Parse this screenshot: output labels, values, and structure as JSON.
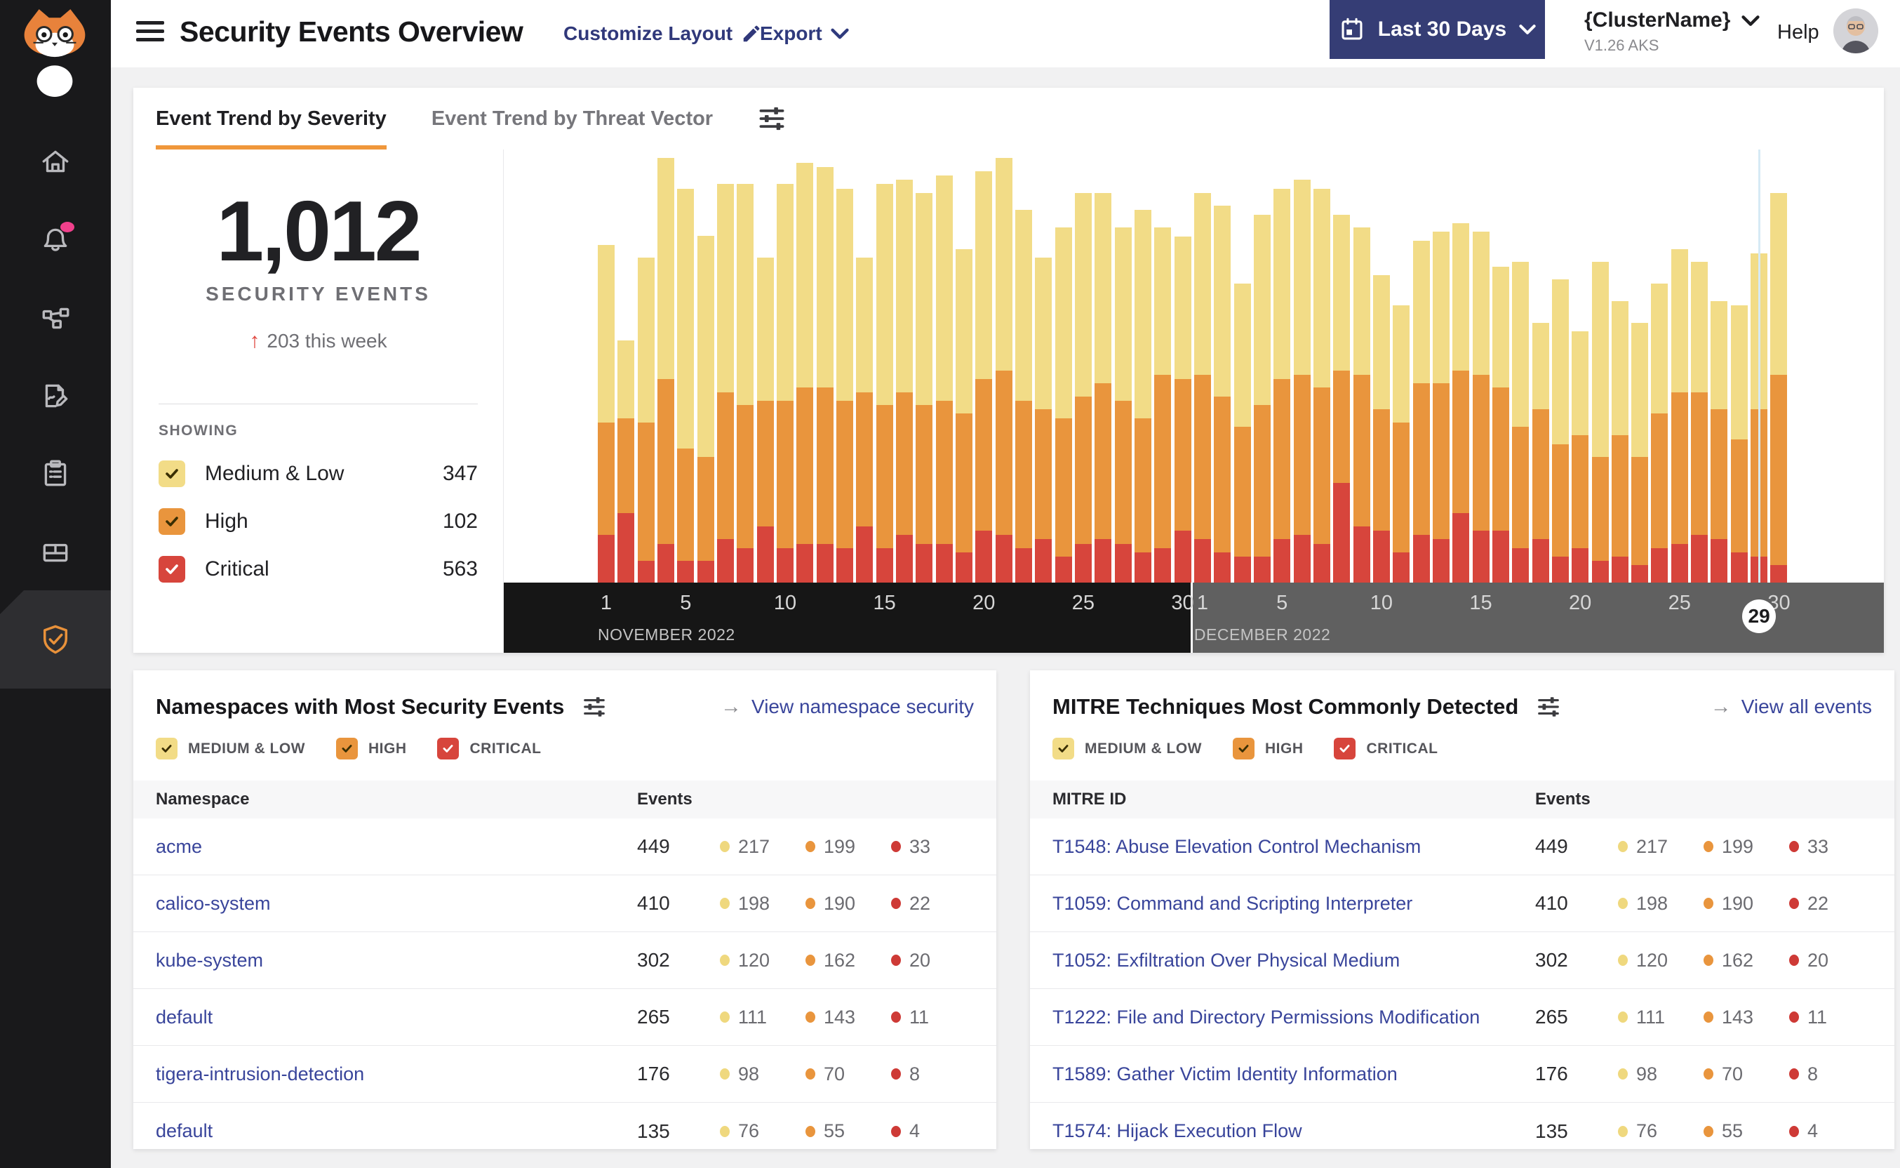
{
  "header": {
    "title": "Security Events Overview",
    "customize_layout_label": "Customize Layout",
    "export_label": "Export",
    "date_range_button": {
      "label": "Last 30 Days",
      "icon": "calendar-icon"
    },
    "cluster": {
      "name": "{ClusterName}",
      "version": "V1.26 AKS"
    },
    "help_label": "Help",
    "icons": [
      "hamburger-menu-icon",
      "pencil-icon",
      "chevron-down-icon",
      "avatar"
    ]
  },
  "sidebar": {
    "items": [
      {
        "icon": "cat-logo"
      },
      {
        "icon": "home-icon"
      },
      {
        "icon": "bell-icon",
        "notification_badge": true
      },
      {
        "icon": "service-graph-icon"
      },
      {
        "icon": "policy-edit-icon"
      },
      {
        "icon": "clipboard-report-icon"
      },
      {
        "icon": "storage-box-icon"
      },
      {
        "icon": "shield-check-icon",
        "active": true,
        "active_color": "#E8913A"
      }
    ]
  },
  "tabs": [
    {
      "label": "Event Trend by Severity",
      "active": true
    },
    {
      "label": "Event Trend by Threat Vector",
      "active": false
    }
  ],
  "summary": {
    "total": "1,012",
    "caption": "SECURITY EVENTS",
    "delta_arrow": "↑",
    "delta": "203 this week",
    "showing_label": "SHOWING",
    "legend": [
      {
        "label": "Medium & Low",
        "count": "347",
        "color": "#F2DC87"
      },
      {
        "label": "High",
        "count": "102",
        "color": "#E9953D"
      },
      {
        "label": "Critical",
        "count": "563",
        "color": "#D7453C"
      }
    ]
  },
  "severity_filters": [
    {
      "label": "MEDIUM & LOW",
      "color": "#F2DC87",
      "checked": true
    },
    {
      "label": "HIGH",
      "color": "#E9953D",
      "checked": true
    },
    {
      "label": "CRITICAL",
      "color": "#D7453C",
      "checked": true
    }
  ],
  "chart_data": {
    "type": "bar",
    "stacked": true,
    "grid": false,
    "value_unit": "relative bar height, % of plot area (no y-axis labels shown in UI)",
    "x": [
      "Nov 1",
      "Nov 2",
      "Nov 3",
      "Nov 4",
      "Nov 5",
      "Nov 6",
      "Nov 7",
      "Nov 8",
      "Nov 9",
      "Nov 10",
      "Nov 11",
      "Nov 12",
      "Nov 13",
      "Nov 14",
      "Nov 15",
      "Nov 16",
      "Nov 17",
      "Nov 18",
      "Nov 19",
      "Nov 20",
      "Nov 21",
      "Nov 22",
      "Nov 23",
      "Nov 24",
      "Nov 25",
      "Nov 26",
      "Nov 27",
      "Nov 28",
      "Nov 29",
      "Nov 30",
      "Dec 1",
      "Dec 2",
      "Dec 3",
      "Dec 4",
      "Dec 5",
      "Dec 6",
      "Dec 7",
      "Dec 8",
      "Dec 9",
      "Dec 10",
      "Dec 11",
      "Dec 12",
      "Dec 13",
      "Dec 14",
      "Dec 15",
      "Dec 16",
      "Dec 17",
      "Dec 18",
      "Dec 19",
      "Dec 20",
      "Dec 21",
      "Dec 22",
      "Dec 23",
      "Dec 24",
      "Dec 25",
      "Dec 26",
      "Dec 27",
      "Dec 28",
      "Dec 29",
      "Dec 30"
    ],
    "series": [
      {
        "name": "Critical",
        "color": "#D7453C",
        "values": [
          11,
          16,
          5,
          9,
          5,
          5,
          10,
          8,
          13,
          8,
          9,
          9,
          8,
          13,
          8,
          11,
          9,
          9,
          7,
          12,
          11,
          8,
          10,
          6,
          9,
          10,
          9,
          7,
          8,
          12,
          10,
          7,
          6,
          6,
          10,
          11,
          9,
          23,
          13,
          12,
          7,
          11,
          10,
          16,
          12,
          12,
          8,
          10,
          6,
          8,
          5,
          6,
          4,
          8,
          9,
          11,
          10,
          7,
          6,
          4
        ]
      },
      {
        "name": "High",
        "color": "#E9953D",
        "values": [
          26,
          22,
          32,
          38,
          26,
          24,
          34,
          33,
          29,
          34,
          36,
          36,
          34,
          31,
          33,
          33,
          32,
          33,
          32,
          35,
          38,
          34,
          30,
          32,
          34,
          36,
          33,
          31,
          40,
          35,
          38,
          36,
          30,
          35,
          37,
          37,
          36,
          26,
          35,
          28,
          30,
          35,
          36,
          33,
          36,
          33,
          28,
          30,
          26,
          26,
          24,
          28,
          25,
          31,
          35,
          33,
          30,
          26,
          34,
          44
        ]
      },
      {
        "name": "Medium & Low",
        "color": "#F2DC87",
        "values": [
          41,
          18,
          38,
          51,
          60,
          51,
          48,
          51,
          33,
          50,
          52,
          51,
          49,
          31,
          51,
          49,
          49,
          52,
          38,
          48,
          49,
          44,
          35,
          44,
          47,
          44,
          40,
          48,
          34,
          33,
          42,
          44,
          33,
          44,
          44,
          45,
          46,
          36,
          34,
          31,
          27,
          33,
          35,
          34,
          33,
          28,
          38,
          20,
          38,
          24,
          45,
          31,
          31,
          30,
          33,
          30,
          25,
          31,
          36,
          42
        ]
      }
    ],
    "x_axis": {
      "months": [
        {
          "label": "NOVEMBER 2022",
          "start_index": 0,
          "band_color": "#161616"
        },
        {
          "label": "DECEMBER 2022",
          "start_index": 30,
          "band_color": "#606060"
        }
      ],
      "ticks": [
        {
          "index": 0,
          "label": "1"
        },
        {
          "index": 4,
          "label": "5"
        },
        {
          "index": 9,
          "label": "10"
        },
        {
          "index": 14,
          "label": "15"
        },
        {
          "index": 19,
          "label": "20"
        },
        {
          "index": 24,
          "label": "25"
        },
        {
          "index": 29,
          "label": "30"
        },
        {
          "index": 30,
          "label": "1"
        },
        {
          "index": 34,
          "label": "5"
        },
        {
          "index": 39,
          "label": "10"
        },
        {
          "index": 44,
          "label": "15"
        },
        {
          "index": 49,
          "label": "20"
        },
        {
          "index": 54,
          "label": "25"
        },
        {
          "index": 59,
          "label": "30"
        }
      ],
      "highlighted_day": {
        "label": "29",
        "index": 58,
        "badge": true,
        "hover_line_color": "#D6EAF5"
      }
    },
    "legend_position": "left stats panel (SHOWING)"
  },
  "panels": {
    "namespaces": {
      "title": "Namespaces with Most Security Events",
      "link": "View namespace security",
      "columns": [
        "Namespace",
        "Events"
      ],
      "rows": [
        {
          "name": "acme",
          "total": "449",
          "medium_low": "217",
          "high": "199",
          "critical": "33"
        },
        {
          "name": "calico-system",
          "total": "410",
          "medium_low": "198",
          "high": "190",
          "critical": "22"
        },
        {
          "name": "kube-system",
          "total": "302",
          "medium_low": "120",
          "high": "162",
          "critical": "20"
        },
        {
          "name": "default",
          "total": "265",
          "medium_low": "111",
          "high": "143",
          "critical": "11"
        },
        {
          "name": "tigera-intrusion-detection",
          "total": "176",
          "medium_low": "98",
          "high": "70",
          "critical": "8"
        },
        {
          "name": "default",
          "total": "135",
          "medium_low": "76",
          "high": "55",
          "critical": "4"
        }
      ]
    },
    "mitre": {
      "title": "MITRE Techniques Most Commonly Detected",
      "link": "View all events",
      "columns": [
        "MITRE ID",
        "Events"
      ],
      "rows": [
        {
          "name": "T1548: Abuse Elevation Control Mechanism",
          "total": "449",
          "medium_low": "217",
          "high": "199",
          "critical": "33"
        },
        {
          "name": "T1059: Command and Scripting Interpreter",
          "total": "410",
          "medium_low": "198",
          "high": "190",
          "critical": "22"
        },
        {
          "name": "T1052: Exfiltration Over Physical Medium",
          "total": "302",
          "medium_low": "120",
          "high": "162",
          "critical": "20"
        },
        {
          "name": "T1222: File and Directory Permissions Modification",
          "total": "265",
          "medium_low": "111",
          "high": "143",
          "critical": "11"
        },
        {
          "name": "T1589: Gather Victim Identity Information",
          "total": "176",
          "medium_low": "98",
          "high": "70",
          "critical": "8"
        },
        {
          "name": "T1574: Hijack Execution Flow",
          "total": "135",
          "medium_low": "76",
          "high": "55",
          "critical": "4"
        }
      ]
    }
  },
  "colors": {
    "medium_low": "#F2DC87",
    "high": "#E9953D",
    "critical": "#D7453C",
    "accent_orange": "#F0973B",
    "link_navy": "#39459B",
    "button_navy": "#353D75",
    "sidebar_bg": "#19191B",
    "page_bg": "#F1F1F2",
    "axis_november": "#161616",
    "axis_december": "#606060"
  }
}
